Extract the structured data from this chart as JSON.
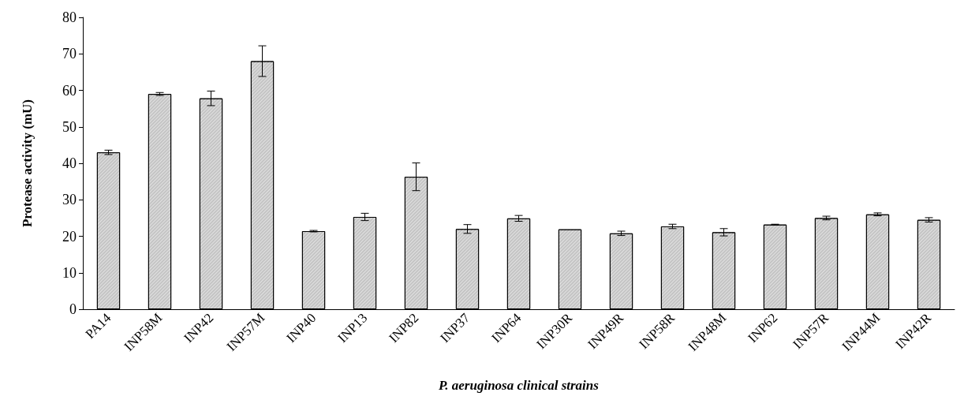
{
  "chart_data": {
    "type": "bar",
    "xlabel": "P. aeruginosa clinical strains",
    "ylabel": "Protease activity (mU)",
    "categories": [
      "PA14",
      "INP58M",
      "INP42",
      "INP57M",
      "INP40",
      "INP13",
      "INP82",
      "INP37",
      "INP64",
      "INP30R",
      "INP49R",
      "INP58R",
      "INP48M",
      "INP62",
      "INP57R",
      "INP44M",
      "INP42R"
    ],
    "values": [
      43,
      59,
      57.8,
      68,
      21.4,
      25.3,
      36.3,
      22,
      24.9,
      21.9,
      20.8,
      22.7,
      21.1,
      23.2,
      25,
      26,
      24.5
    ],
    "errors": [
      0.6,
      0.4,
      2,
      4.2,
      0.2,
      1,
      3.8,
      1.2,
      0.8,
      null,
      0.6,
      0.6,
      1,
      0.1,
      0.5,
      0.4,
      0.6
    ],
    "color": "#c4c4c4",
    "ylim": [
      0,
      80
    ],
    "yticks": [
      0,
      10,
      20,
      30,
      40,
      50,
      60,
      70,
      80
    ],
    "grid": false
  }
}
